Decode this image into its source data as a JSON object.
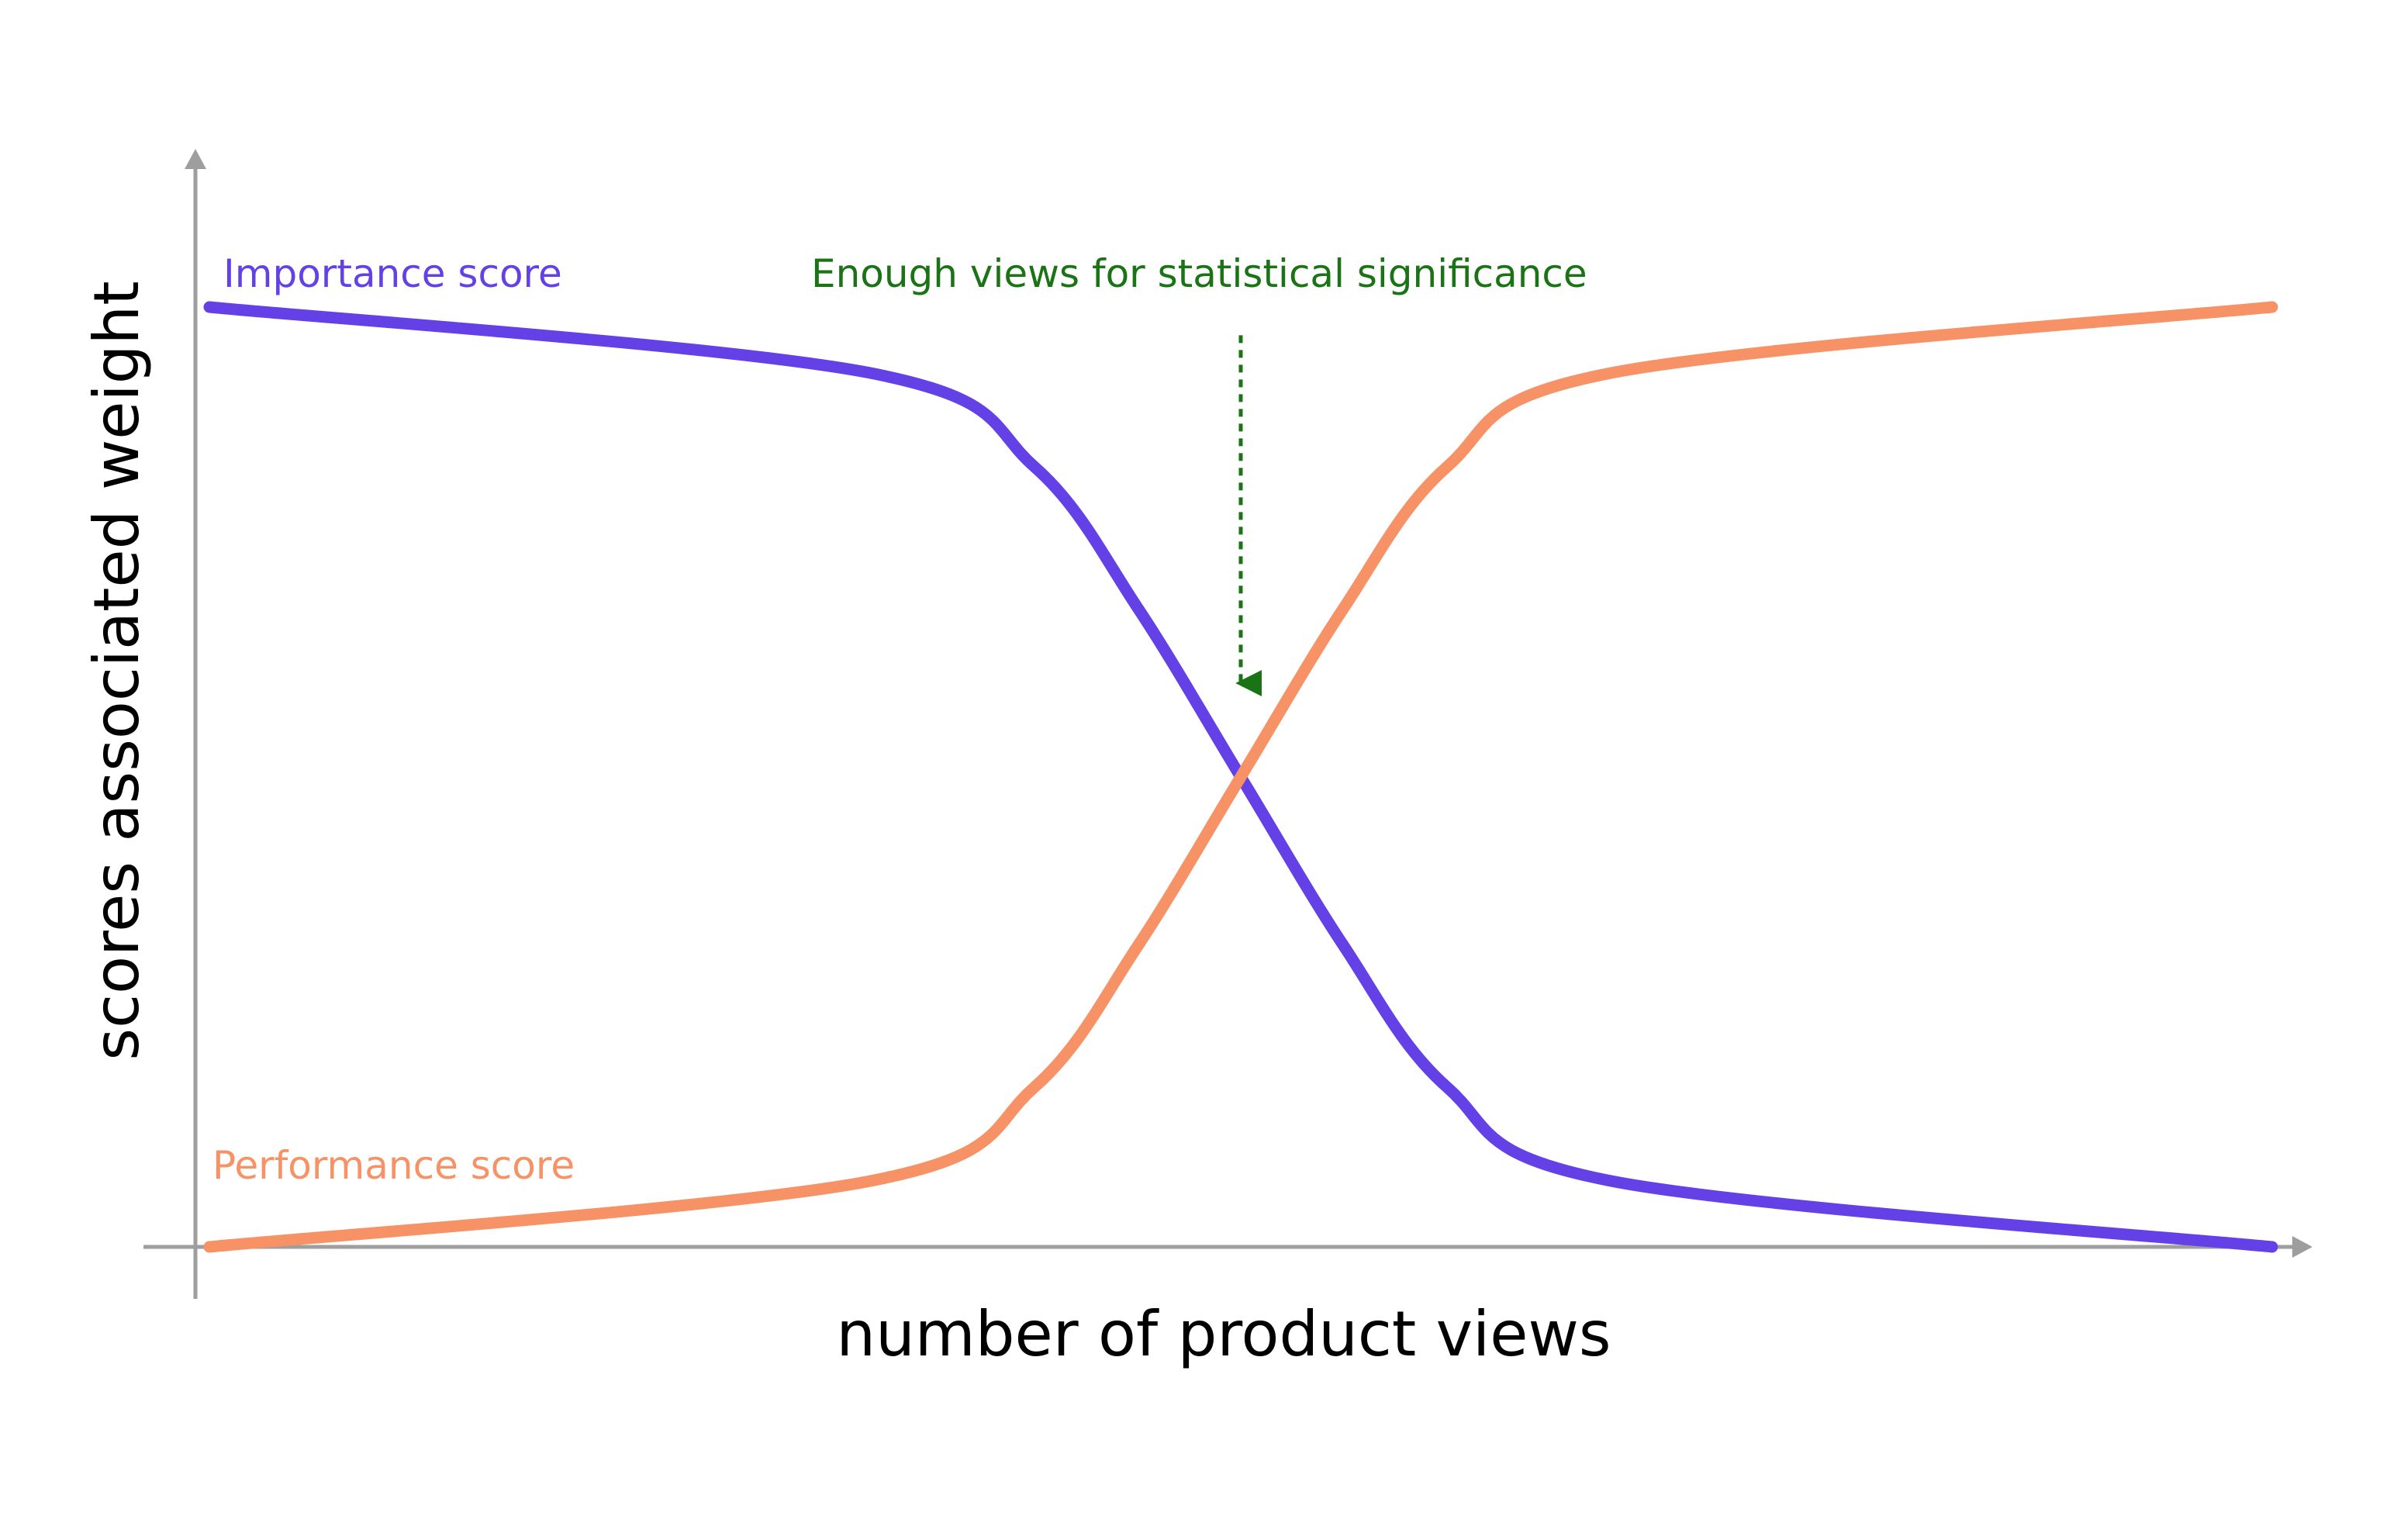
{
  "chart_data": {
    "type": "line",
    "title": "",
    "xlabel": "number of product views",
    "ylabel": "scores associated weight",
    "xlim": [
      0,
      100
    ],
    "ylim": [
      0,
      100
    ],
    "grid": false,
    "legend": "none",
    "x": [
      0,
      32,
      40,
      45,
      50,
      55,
      60,
      68,
      100
    ],
    "series": [
      {
        "name": "Importance score",
        "color": "#6441e6",
        "values": [
          100,
          93,
          83,
          68,
          50,
          32,
          17,
          7,
          0
        ]
      },
      {
        "name": "Performance score",
        "color": "#f79266",
        "values": [
          0,
          7,
          17,
          32,
          50,
          68,
          83,
          93,
          100
        ]
      }
    ],
    "annotations": [
      {
        "text": "Enough views for statistical significance",
        "color": "#1a7314",
        "x": 50,
        "arrow_from_y": 97,
        "arrow_to_y": 58
      }
    ]
  }
}
